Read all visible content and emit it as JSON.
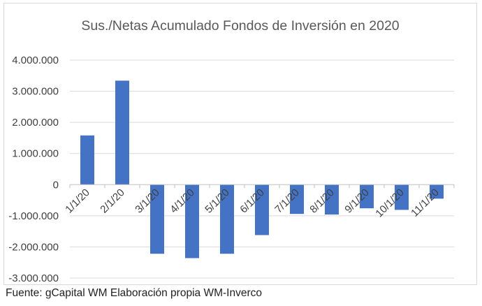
{
  "chart_data": {
    "type": "bar",
    "title": "Sus./Netas Acumulado Fondos de Inversión en 2020",
    "xlabel": "",
    "ylabel": "",
    "categories": [
      "1/1/20",
      "2/1/20",
      "3/1/20",
      "4/1/20",
      "5/1/20",
      "6/1/20",
      "7/1/20",
      "8/1/20",
      "9/1/20",
      "10/1/20",
      "11/1/20"
    ],
    "values": [
      1580000,
      3340000,
      -2220000,
      -2360000,
      -2220000,
      -1620000,
      -940000,
      -960000,
      -760000,
      -810000,
      -450000
    ],
    "ylim": [
      -3000000,
      4000000
    ],
    "y_ticks": [
      4000000,
      3000000,
      2000000,
      1000000,
      0,
      -1000000,
      -2000000,
      -3000000
    ],
    "y_tick_labels": [
      "4.000.000",
      "3.000.000",
      "2.000.000",
      "1.000.000",
      "0",
      "-1.000.000",
      "-2.000.000",
      "-3.000.000"
    ],
    "grid": true,
    "legend": "none",
    "bar_color": "#4472c4",
    "grid_color": "#d9d9d9",
    "text_color": "#404040"
  },
  "source": "Fuente: gCapital WM Elaboración propia WM-Inverco"
}
